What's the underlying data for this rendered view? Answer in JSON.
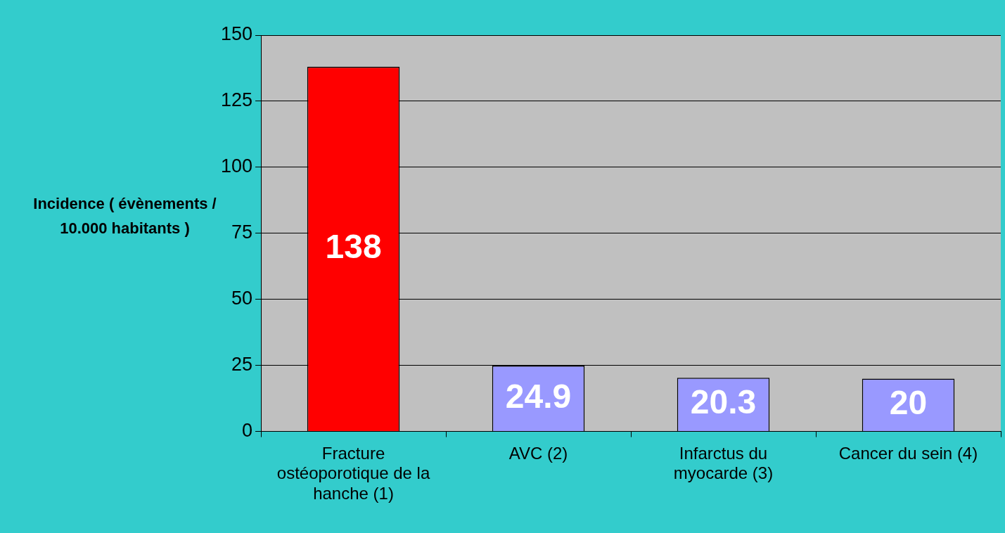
{
  "chart_data": {
    "type": "bar",
    "ylabel": "Incidence ( évènements / 10.000 habitants )",
    "categories": [
      "Fracture ostéoporotique de la hanche (1)",
      "AVC (2)",
      "Infarctus du myocarde (3)",
      "Cancer du sein (4)"
    ],
    "values": [
      138,
      24.9,
      20.3,
      20
    ],
    "colors": [
      "#ff0000",
      "#9999ff",
      "#9999ff",
      "#9999ff"
    ],
    "ylim": [
      0,
      150
    ],
    "yticks": [
      0,
      25,
      50,
      75,
      100,
      125,
      150
    ],
    "grid": "y",
    "data_labels": true
  }
}
